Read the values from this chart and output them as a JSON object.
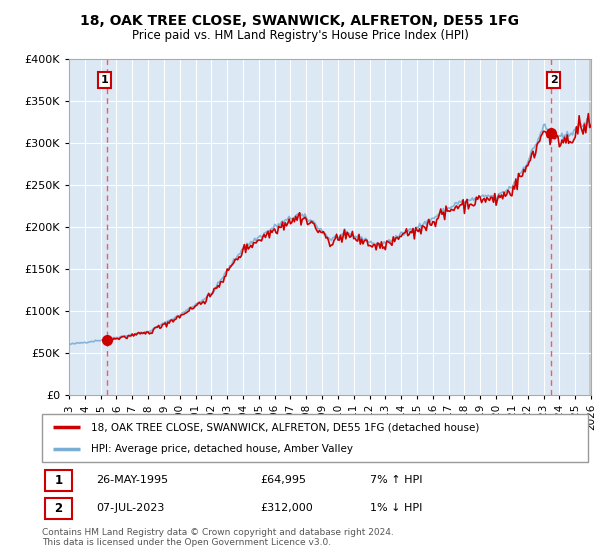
{
  "title": "18, OAK TREE CLOSE, SWANWICK, ALFRETON, DE55 1FG",
  "subtitle": "Price paid vs. HM Land Registry's House Price Index (HPI)",
  "plot_bg_color": "#dce9f5",
  "line_color_property": "#cc0000",
  "line_color_hpi": "#7aaed4",
  "marker_color": "#cc0000",
  "vline_color": "#ff5555",
  "annotation_border_color": "#cc0000",
  "legend_line1": "18, OAK TREE CLOSE, SWANWICK, ALFRETON, DE55 1FG (detached house)",
  "legend_line2": "HPI: Average price, detached house, Amber Valley",
  "sale1_label": "1",
  "sale1_date": "26-MAY-1995",
  "sale1_price": "£64,995",
  "sale1_hpi": "7% ↑ HPI",
  "sale2_label": "2",
  "sale2_date": "07-JUL-2023",
  "sale2_price": "£312,000",
  "sale2_hpi": "1% ↓ HPI",
  "footer": "Contains HM Land Registry data © Crown copyright and database right 2024.\nThis data is licensed under the Open Government Licence v3.0.",
  "ylim": [
    0,
    400000
  ],
  "xlim_left": 1993.0,
  "xlim_right": 2026.0,
  "sale1_year": 1995.38,
  "sale1_value": 64995,
  "sale2_year": 2023.5,
  "sale2_value": 312000,
  "yticks": [
    0,
    50000,
    100000,
    150000,
    200000,
    250000,
    300000,
    350000,
    400000
  ],
  "xticks": [
    1993,
    1994,
    1995,
    1996,
    1997,
    1998,
    1999,
    2000,
    2001,
    2002,
    2003,
    2004,
    2005,
    2006,
    2007,
    2008,
    2009,
    2010,
    2011,
    2012,
    2013,
    2014,
    2015,
    2016,
    2017,
    2018,
    2019,
    2020,
    2021,
    2022,
    2023,
    2024,
    2025,
    2026
  ]
}
